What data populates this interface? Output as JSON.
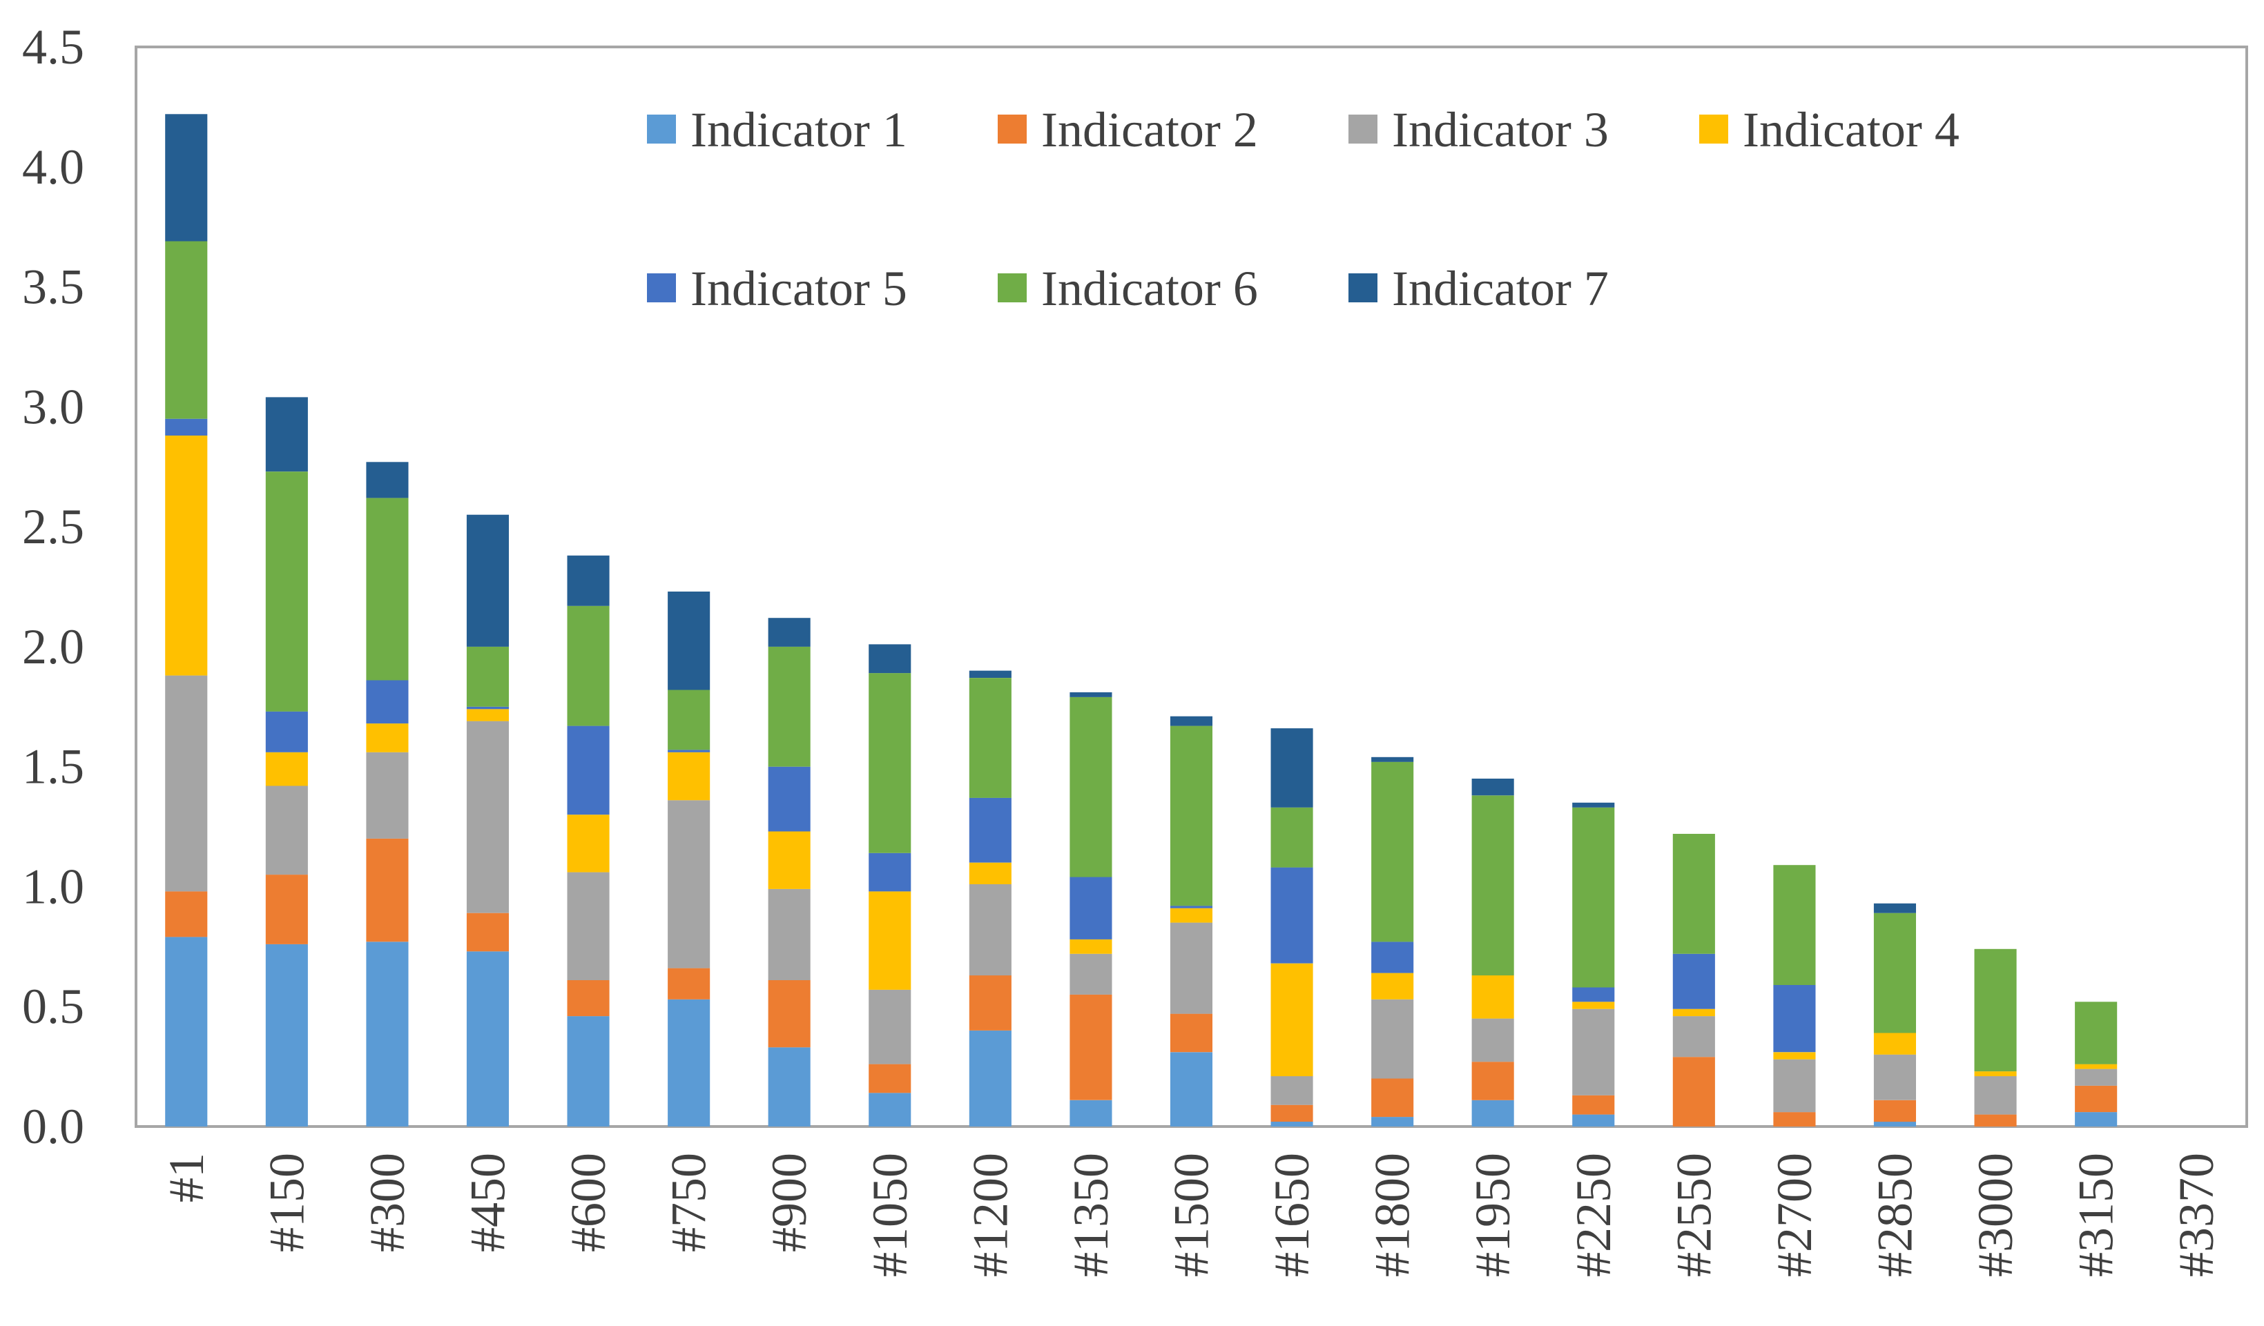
{
  "chart_data": {
    "type": "bar",
    "stacked": true,
    "title": "",
    "xlabel": "",
    "ylabel": "",
    "ylim": [
      0,
      4.5
    ],
    "yticks": [
      "0.0",
      "0.5",
      "1.0",
      "1.5",
      "2.0",
      "2.5",
      "3.0",
      "3.5",
      "4.0",
      "4.5"
    ],
    "grid": false,
    "legend_position": "top-right",
    "categories": [
      "#1",
      "#150",
      "#300",
      "#450",
      "#600",
      "#750",
      "#900",
      "#1050",
      "#1200",
      "#1350",
      "#1500",
      "#1650",
      "#1800",
      "#1950",
      "#2250",
      "#2550",
      "#2700",
      "#2850",
      "#3000",
      "#3150",
      "#3370"
    ],
    "series": [
      {
        "name": "Indicator 1",
        "color": "#5b9bd5",
        "values": [
          0.79,
          0.76,
          0.77,
          0.73,
          0.46,
          0.53,
          0.33,
          0.14,
          0.4,
          0.11,
          0.31,
          0.02,
          0.04,
          0.11,
          0.05,
          0.0,
          0.0,
          0.02,
          0.0,
          0.06,
          0.0
        ]
      },
      {
        "name": "Indicator 2",
        "color": "#ed7d31",
        "values": [
          0.19,
          0.29,
          0.43,
          0.16,
          0.15,
          0.13,
          0.28,
          0.12,
          0.23,
          0.44,
          0.16,
          0.07,
          0.16,
          0.16,
          0.08,
          0.29,
          0.06,
          0.09,
          0.05,
          0.11,
          0.0
        ]
      },
      {
        "name": "Indicator 3",
        "color": "#a5a5a5",
        "values": [
          0.9,
          0.37,
          0.36,
          0.8,
          0.45,
          0.7,
          0.38,
          0.31,
          0.38,
          0.17,
          0.38,
          0.12,
          0.33,
          0.18,
          0.36,
          0.17,
          0.22,
          0.19,
          0.16,
          0.07,
          0.0
        ]
      },
      {
        "name": "Indicator 4",
        "color": "#ffc000",
        "values": [
          1.0,
          0.14,
          0.12,
          0.05,
          0.24,
          0.2,
          0.24,
          0.41,
          0.09,
          0.06,
          0.06,
          0.47,
          0.11,
          0.18,
          0.03,
          0.03,
          0.03,
          0.09,
          0.02,
          0.02,
          0.0
        ]
      },
      {
        "name": "Indicator 5",
        "color": "#4472c4",
        "values": [
          0.07,
          0.17,
          0.18,
          0.01,
          0.37,
          0.01,
          0.27,
          0.16,
          0.27,
          0.26,
          0.01,
          0.4,
          0.13,
          0.0,
          0.06,
          0.23,
          0.28,
          0.0,
          0.0,
          0.0,
          0.0
        ]
      },
      {
        "name": "Indicator 6",
        "color": "#70ad47",
        "values": [
          0.74,
          1.0,
          0.76,
          0.25,
          0.5,
          0.25,
          0.5,
          0.75,
          0.5,
          0.75,
          0.75,
          0.25,
          0.75,
          0.75,
          0.75,
          0.5,
          0.5,
          0.5,
          0.51,
          0.26,
          0.0
        ]
      },
      {
        "name": "Indicator 7",
        "color": "#255e91",
        "values": [
          0.53,
          0.31,
          0.15,
          0.55,
          0.21,
          0.41,
          0.12,
          0.12,
          0.03,
          0.02,
          0.04,
          0.33,
          0.02,
          0.07,
          0.02,
          0.0,
          0.0,
          0.04,
          0.0,
          0.0,
          0.0
        ]
      }
    ]
  }
}
